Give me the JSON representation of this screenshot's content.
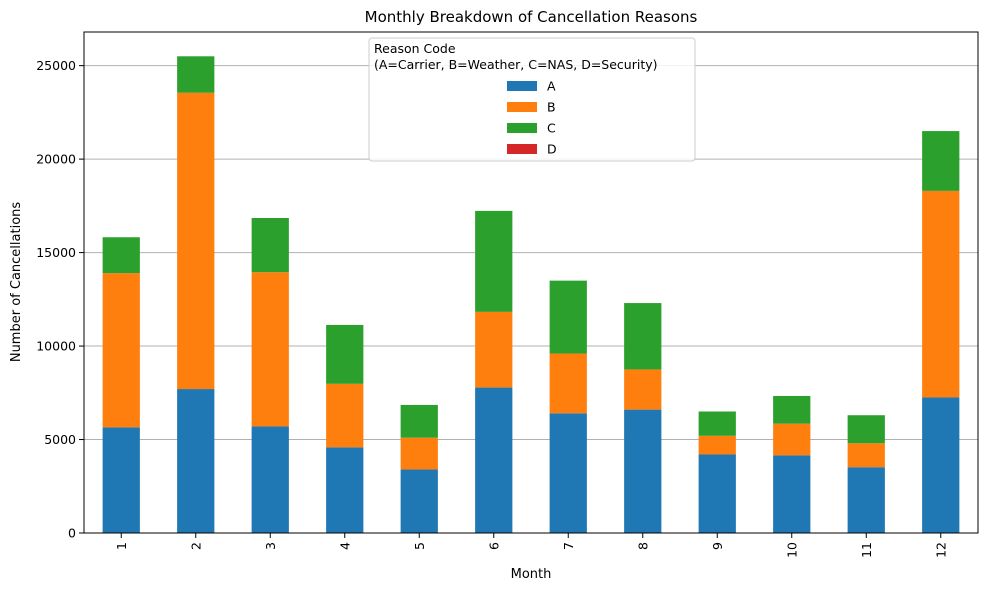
{
  "chart_data": {
    "type": "bar",
    "stacked": true,
    "title": "Monthly Breakdown of Cancellation Reasons",
    "xlabel": "Month",
    "ylabel": "Number of Cancellations",
    "categories": [
      "1",
      "2",
      "3",
      "4",
      "5",
      "6",
      "7",
      "8",
      "9",
      "10",
      "11",
      "12"
    ],
    "series": [
      {
        "name": "A",
        "color": "#1f77b4",
        "values": [
          5650,
          7700,
          5700,
          4580,
          3400,
          7780,
          6400,
          6600,
          4200,
          4150,
          3520,
          7250
        ]
      },
      {
        "name": "B",
        "color": "#ff7f0e",
        "values": [
          8250,
          15850,
          8250,
          3400,
          1700,
          4050,
          3200,
          2150,
          1000,
          1700,
          1280,
          11050
        ]
      },
      {
        "name": "C",
        "color": "#2ca02c",
        "values": [
          1920,
          1950,
          2900,
          3150,
          1750,
          5400,
          3900,
          3550,
          1300,
          1480,
          1500,
          3200
        ]
      },
      {
        "name": "D",
        "color": "#d62728",
        "values": [
          0,
          0,
          0,
          0,
          0,
          0,
          0,
          0,
          0,
          0,
          0,
          0
        ]
      }
    ],
    "ylim": [
      0,
      26800
    ],
    "yticks": [
      "0",
      "5000",
      "10000",
      "15000",
      "20000",
      "25000"
    ],
    "ytick_values": [
      0,
      5000,
      10000,
      15000,
      20000,
      25000
    ],
    "grid": "y-axis",
    "legend": {
      "title_line1": "Reason Code",
      "title_line2": "(A=Carrier, B=Weather, C=NAS, D=Security)",
      "placement": "upper center"
    }
  }
}
